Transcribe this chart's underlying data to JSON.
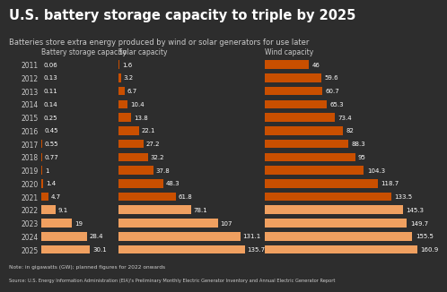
{
  "title": "U.S. battery storage capacity to triple by 2025",
  "subtitle": "Batteries store extra energy produced by wind or solar generators for use later",
  "note": "Note: in gigawatts (GW); planned figures for 2022 onwards",
  "source": "Source: U.S. Energy Information Administration (EIA)'s Preliminary Monthly Electric Generator Inventory and Annual Electric Generator Report",
  "years": [
    2011,
    2012,
    2013,
    2014,
    2015,
    2016,
    2017,
    2018,
    2019,
    2020,
    2021,
    2022,
    2023,
    2024,
    2025
  ],
  "battery": [
    0.06,
    0.13,
    0.11,
    0.14,
    0.25,
    0.45,
    0.55,
    0.77,
    1,
    1.4,
    4.7,
    9.1,
    19,
    28.4,
    30.1
  ],
  "solar": [
    1.6,
    3.2,
    6.7,
    10.4,
    13.8,
    22.1,
    27.2,
    32.2,
    37.8,
    48.3,
    61.8,
    78.1,
    107,
    131.1,
    135.7
  ],
  "wind": [
    46,
    59.6,
    60.7,
    65.3,
    73.4,
    82,
    88.3,
    95,
    104.3,
    118.7,
    133.5,
    145.3,
    149.7,
    155.5,
    160.9
  ],
  "col_labels": [
    "Battery storage capacity",
    "Solar capacity",
    "Wind capacity"
  ],
  "bg_color": "#2d2d2d",
  "bar_color_dark": "#c94f00",
  "bar_color_light": "#f0a060",
  "text_color": "#ffffff",
  "label_color": "#cccccc",
  "title_fontsize": 10.5,
  "subtitle_fontsize": 6.0,
  "col_fontsize": 5.5,
  "bar_fontsize": 5.0,
  "year_fontsize": 5.5,
  "note_fontsize": 4.2,
  "planned_from": 2022
}
